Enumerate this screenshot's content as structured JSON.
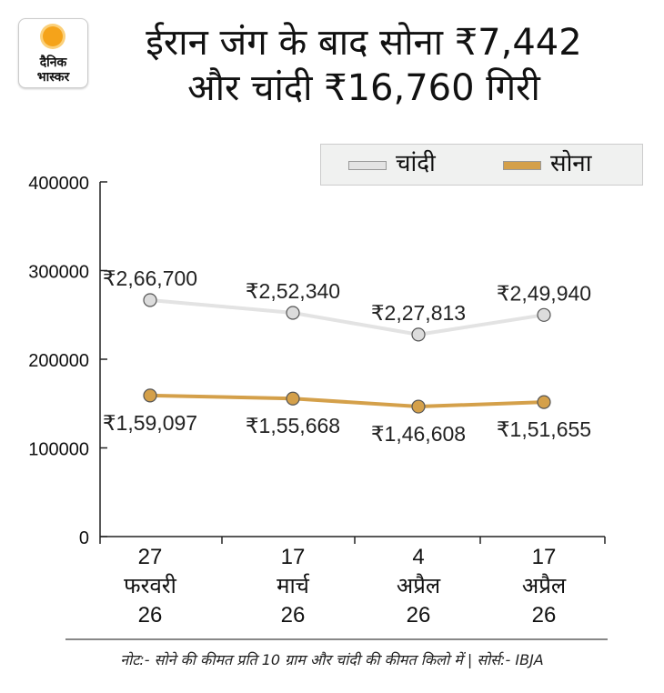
{
  "brand": {
    "logo_line1": "दैनिक",
    "logo_line2": "भास्कर",
    "logo_sun_color": "#f5a31a"
  },
  "title_line1": "ईरान जंग के बाद सोना ₹7,442",
  "title_line2": "और चांदी ₹16,760 गिरी",
  "footer_note": "नोट:- सोने की कीमत प्रति 10 ग्राम और चांदी की कीमत किलो में | सोर्स:- IBJA",
  "chart_data": {
    "type": "line",
    "categories": [
      [
        "27",
        "फरवरी",
        "26"
      ],
      [
        "17",
        "मार्च",
        "26"
      ],
      [
        "4",
        "अप्रैल",
        "26"
      ],
      [
        "17",
        "अप्रैल",
        "26"
      ]
    ],
    "ylim": [
      0,
      400000
    ],
    "yticks": [
      "0",
      "100000",
      "200000",
      "300000",
      "400000"
    ],
    "legend_position": "top-right",
    "grid": false,
    "series": [
      {
        "name": "चांदी",
        "color": "#e3e3e3",
        "marker": "#dcdcdc",
        "values": [
          266700,
          252340,
          227813,
          249940
        ],
        "labels": [
          "₹2,66,700",
          "₹2,52,340",
          "₹2,27,813",
          "₹2,49,940"
        ]
      },
      {
        "name": "सोना",
        "color": "#d4a04a",
        "marker": "#d4a04a",
        "values": [
          159097,
          155668,
          146608,
          151655
        ],
        "labels": [
          "₹1,59,097",
          "₹1,55,668",
          "₹1,46,608",
          "₹1,51,655"
        ]
      }
    ]
  }
}
